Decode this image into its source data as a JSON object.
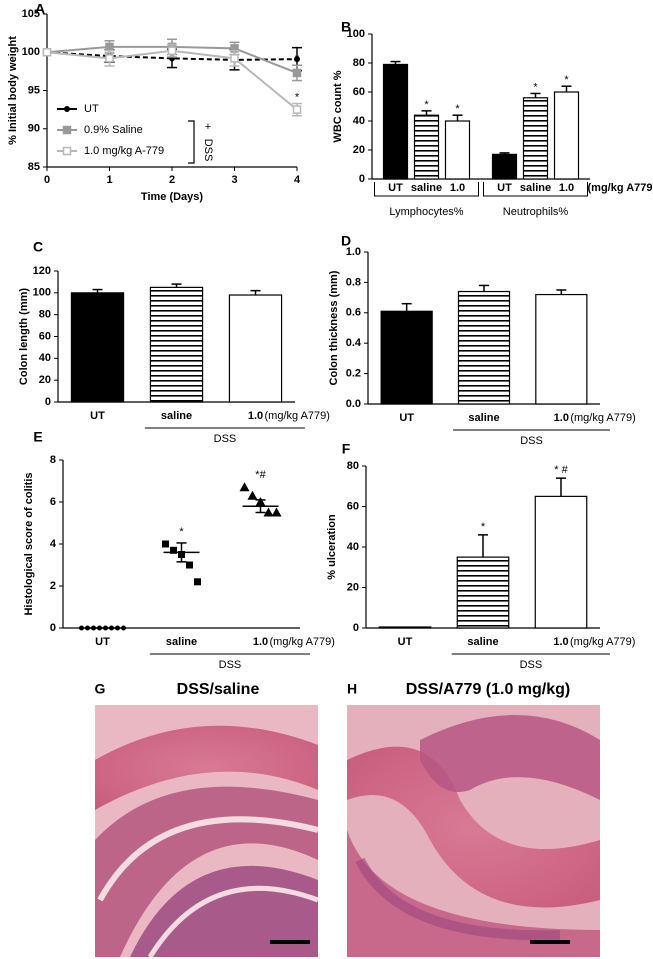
{
  "chart_data": [
    {
      "panel": "A",
      "type": "line",
      "x": [
        0,
        1,
        2,
        3,
        4
      ],
      "xlim": [
        0,
        4
      ],
      "xticks": [
        0,
        1,
        2,
        3,
        4
      ],
      "ylim": [
        85,
        105
      ],
      "yticks": [
        85,
        90,
        95,
        100,
        105
      ],
      "x_label": "Time (Days)",
      "y_label": "% Initial body weight",
      "series": [
        {
          "name": "UT",
          "color": "#000000",
          "dashed": true,
          "marker": "circle",
          "values": [
            100,
            99.5,
            99.2,
            99,
            99.1
          ],
          "errors": [
            0,
            0.8,
            1.2,
            1.3,
            1.5
          ],
          "annotations": [
            null,
            null,
            null,
            null,
            null
          ]
        },
        {
          "name": "0.9% Saline",
          "color": "#999999",
          "dashed": false,
          "marker": "square",
          "values": [
            100,
            100.7,
            100.7,
            100.5,
            97.3
          ],
          "errors": [
            0,
            0.8,
            1,
            0.8,
            1
          ],
          "annotations": [
            null,
            null,
            null,
            null,
            "*"
          ]
        },
        {
          "name": "1.0 mg/kg A-779",
          "color": "#b8b8b8",
          "dashed": false,
          "marker": "open-square",
          "values": [
            100,
            99.2,
            100.2,
            99.2,
            92.5
          ],
          "errors": [
            0,
            1,
            0.8,
            1,
            0.8
          ],
          "annotations": [
            null,
            null,
            null,
            null,
            "*"
          ]
        }
      ],
      "bracket_sign": "+",
      "bracket_label": "DSS"
    },
    {
      "panel": "B",
      "type": "grouped-bar",
      "categories": [
        "Lymphocytes%",
        "Neutrophils%"
      ],
      "ylim": [
        0,
        100
      ],
      "yticks": [
        0,
        20,
        40,
        60,
        80,
        100
      ],
      "y_label": "WBC count %",
      "unit_label": "(mg/kg A779)",
      "series": [
        {
          "name": "UT",
          "pattern": "solid",
          "values": [
            79,
            17
          ],
          "errors": [
            2,
            1
          ],
          "annotations": [
            null,
            null
          ]
        },
        {
          "name": "saline",
          "pattern": "stripes",
          "values": [
            44,
            56
          ],
          "errors": [
            3,
            3
          ],
          "annotations": [
            "*",
            "*"
          ]
        },
        {
          "name": "1.0",
          "pattern": "open",
          "values": [
            40,
            60
          ],
          "errors": [
            4,
            4
          ],
          "annotations": [
            "*",
            "*"
          ]
        }
      ]
    },
    {
      "panel": "C",
      "type": "bar",
      "categories": [
        "UT",
        "saline",
        "1.0"
      ],
      "values": [
        100,
        105,
        98
      ],
      "errors": [
        3,
        3,
        4
      ],
      "patterns": [
        "solid",
        "stripes",
        "open"
      ],
      "annotations": [
        null,
        null,
        null
      ],
      "ylim": [
        0,
        120
      ],
      "yticks": [
        0,
        20,
        40,
        60,
        80,
        100,
        120
      ],
      "y_label": "Colon length (mm)",
      "unit_label": "(mg/kg A779)",
      "group_label": "DSS"
    },
    {
      "panel": "D",
      "type": "bar",
      "categories": [
        "UT",
        "saline",
        "1.0"
      ],
      "values": [
        0.61,
        0.74,
        0.72
      ],
      "errors": [
        0.05,
        0.04,
        0.03
      ],
      "patterns": [
        "solid",
        "stripes",
        "open"
      ],
      "annotations": [
        null,
        null,
        null
      ],
      "ylim": [
        0,
        1
      ],
      "yticks": [
        {
          "value": 0,
          "label": "0.0"
        },
        0.2,
        0.4,
        0.6,
        0.8,
        {
          "value": 1,
          "label": "1.0"
        }
      ],
      "y_label": "Colon thickness (mm)",
      "unit_label": "(mg/kg A779)",
      "group_label": "DSS"
    },
    {
      "panel": "E",
      "type": "dot",
      "categories": [
        "UT",
        "saline",
        "1.0"
      ],
      "points": [
        [
          0,
          0,
          0,
          0,
          0,
          0,
          0,
          0
        ],
        [
          4.0,
          3.7,
          3.5,
          3.0,
          2.2
        ],
        [
          6.7,
          6.3,
          6.0,
          5.5,
          5.5
        ]
      ],
      "means": [
        0,
        3.6,
        5.8
      ],
      "errors": [
        0,
        0.45,
        0.3
      ],
      "markers": [
        "circle",
        "square",
        "triangle"
      ],
      "annotations": [
        null,
        "*",
        "*#"
      ],
      "ylim": [
        0,
        8
      ],
      "yticks": [
        0,
        2,
        4,
        6,
        8
      ],
      "y_label": "Histological score of colitis",
      "unit_label": "(mg/kg A779)",
      "group_label": "DSS"
    },
    {
      "panel": "F",
      "type": "bar",
      "categories": [
        "UT",
        "saline",
        "1.0"
      ],
      "values": [
        0.5,
        35,
        65
      ],
      "errors": [
        0,
        11,
        9
      ],
      "patterns": [
        "solid",
        "stripes",
        "open"
      ],
      "annotations": [
        null,
        "*",
        "* #"
      ],
      "ylim": [
        0,
        80
      ],
      "yticks": [
        0,
        20,
        40,
        60,
        80
      ],
      "y_label": "% ulceration",
      "unit_label": "(mg/kg A779)",
      "group_label": "DSS"
    }
  ],
  "images": [
    {
      "panel": "G",
      "title": "DSS/saline"
    },
    {
      "panel": "H",
      "title": "DSS/A779 (1.0 mg/kg)"
    }
  ]
}
